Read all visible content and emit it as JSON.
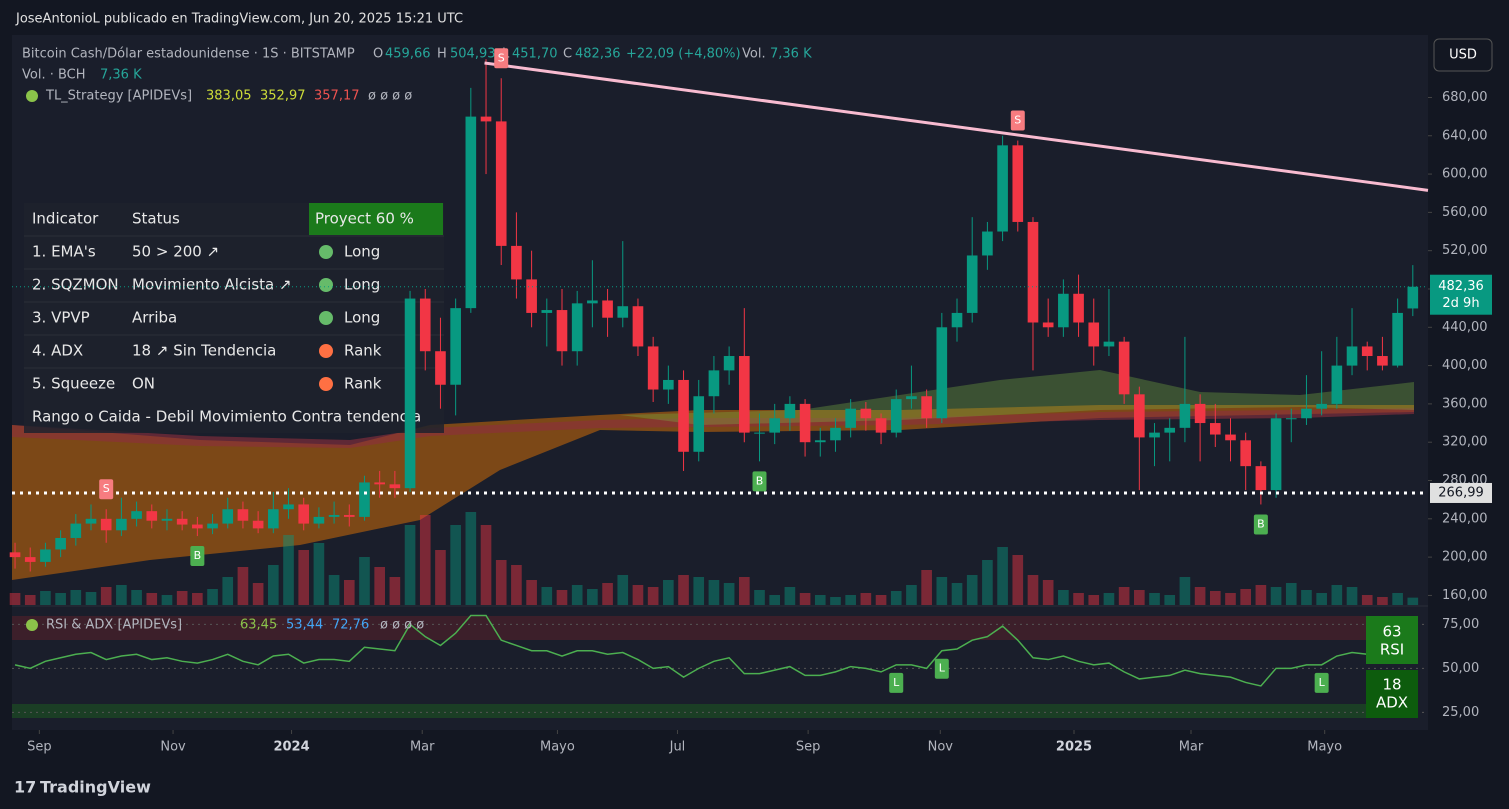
{
  "header": {
    "publisher": "JoseAntonioL publicado en TradingView.com, Jun 20, 2025 15:21 UTC",
    "symbol": "Bitcoin Cash/Dólar estadounidense · 1S · BITSTAMP",
    "o_key": "O",
    "o": "459,66",
    "h_key": "H",
    "h": "504,93",
    "l_key": "L",
    "l": "451,70",
    "c_key": "C",
    "c": "482,36",
    "change": "+22,09 (+4,80%)",
    "vol_key": "Vol.",
    "vol": "7,36 K",
    "vol_line_key": "Vol. · BCH",
    "vol_line": "7,36 K",
    "strategy": "TL_Strategy [APIDEVs]",
    "strategy_values": [
      "383,05",
      "352,97",
      "357,17",
      "ø ø ø ø"
    ],
    "currency": "USD"
  },
  "table": {
    "headers": [
      "Indicator",
      "Status",
      "Proyect 60 %"
    ],
    "rows": [
      [
        "1. EMA's",
        "50 > 200 ↗",
        "Long"
      ],
      [
        "2. SQZMON",
        "Movimiento Alcista ↗",
        "Long"
      ],
      [
        "3. VPVP",
        "Arriba",
        "Long"
      ],
      [
        "4. ADX",
        "18 ↗ Sin Tendencia",
        "Rank"
      ],
      [
        "5. Squeeze",
        "ON",
        "Rank"
      ]
    ],
    "footer": "Rango o Caida - Debil Movimiento Contra tendencia"
  },
  "chart_data": {
    "type": "candlestick",
    "ylim": [
      150,
      740
    ],
    "yticks": [
      {
        "value": 160,
        "label": "160,00"
      },
      {
        "value": 200,
        "label": "200,00"
      },
      {
        "value": 240,
        "label": "240,00"
      },
      {
        "value": 280,
        "label": "280,00"
      },
      {
        "value": 320,
        "label": "320,00"
      },
      {
        "value": 360,
        "label": "360,00"
      },
      {
        "value": 400,
        "label": "400,00"
      },
      {
        "value": 440,
        "label": "440,00"
      },
      {
        "value": 480,
        "label": "480,00"
      },
      {
        "value": 520,
        "label": "520,00"
      },
      {
        "value": 560,
        "label": "560,00"
      },
      {
        "value": 600,
        "label": "600,00"
      },
      {
        "value": 640,
        "label": "640,00"
      },
      {
        "value": 680,
        "label": "680,00"
      }
    ],
    "xlim": [
      -0.2,
      93
    ],
    "xticks": [
      {
        "value": 1.6,
        "label": "Sep"
      },
      {
        "value": 10.4,
        "label": "Nov"
      },
      {
        "value": 18.2,
        "label": "2024"
      },
      {
        "value": 26.8,
        "label": "Mar"
      },
      {
        "value": 35.7,
        "label": "Mayo"
      },
      {
        "value": 43.6,
        "label": "Jul"
      },
      {
        "value": 52.2,
        "label": "Sep"
      },
      {
        "value": 60.9,
        "label": "Nov"
      },
      {
        "value": 69.7,
        "label": "2025"
      },
      {
        "value": 77.4,
        "label": "Mar"
      },
      {
        "value": 86.2,
        "label": "Mayo"
      }
    ],
    "up_color": "#089981",
    "down_color": "#f23645",
    "ohlc": [
      [
        205,
        215,
        188,
        200
      ],
      [
        200,
        210,
        185,
        195
      ],
      [
        195,
        215,
        190,
        208
      ],
      [
        208,
        228,
        200,
        220
      ],
      [
        220,
        245,
        212,
        235
      ],
      [
        235,
        255,
        228,
        240
      ],
      [
        240,
        250,
        215,
        228
      ],
      [
        228,
        262,
        222,
        240
      ],
      [
        240,
        258,
        232,
        248
      ],
      [
        248,
        255,
        230,
        238
      ],
      [
        238,
        250,
        228,
        240
      ],
      [
        240,
        248,
        228,
        234
      ],
      [
        234,
        242,
        222,
        230
      ],
      [
        230,
        245,
        224,
        235
      ],
      [
        235,
        262,
        230,
        250
      ],
      [
        250,
        258,
        230,
        238
      ],
      [
        238,
        248,
        225,
        230
      ],
      [
        230,
        268,
        225,
        250
      ],
      [
        250,
        272,
        240,
        255
      ],
      [
        255,
        262,
        228,
        235
      ],
      [
        235,
        252,
        230,
        242
      ],
      [
        242,
        258,
        235,
        244
      ],
      [
        244,
        255,
        232,
        242
      ],
      [
        242,
        285,
        238,
        278
      ],
      [
        278,
        290,
        262,
        276
      ],
      [
        276,
        290,
        262,
        272
      ],
      [
        272,
        478,
        268,
        470
      ],
      [
        470,
        480,
        395,
        415
      ],
      [
        415,
        450,
        355,
        380
      ],
      [
        380,
        470,
        348,
        460
      ],
      [
        460,
        690,
        455,
        660
      ],
      [
        660,
        720,
        600,
        655
      ],
      [
        655,
        700,
        505,
        525
      ],
      [
        525,
        560,
        470,
        490
      ],
      [
        490,
        520,
        440,
        455
      ],
      [
        455,
        470,
        420,
        458
      ],
      [
        458,
        480,
        400,
        415
      ],
      [
        415,
        478,
        400,
        465
      ],
      [
        465,
        510,
        440,
        468
      ],
      [
        468,
        480,
        430,
        450
      ],
      [
        450,
        530,
        440,
        462
      ],
      [
        462,
        470,
        410,
        420
      ],
      [
        420,
        430,
        362,
        375
      ],
      [
        375,
        400,
        360,
        385
      ],
      [
        385,
        395,
        290,
        310
      ],
      [
        310,
        385,
        300,
        368
      ],
      [
        368,
        410,
        350,
        395
      ],
      [
        395,
        420,
        380,
        410
      ],
      [
        410,
        460,
        320,
        330
      ],
      [
        330,
        350,
        300,
        330
      ],
      [
        330,
        360,
        318,
        345
      ],
      [
        345,
        368,
        332,
        360
      ],
      [
        360,
        365,
        305,
        320
      ],
      [
        320,
        335,
        305,
        322
      ],
      [
        322,
        345,
        310,
        335
      ],
      [
        335,
        365,
        325,
        355
      ],
      [
        355,
        362,
        332,
        345
      ],
      [
        345,
        350,
        318,
        330
      ],
      [
        330,
        375,
        325,
        365
      ],
      [
        365,
        400,
        355,
        368
      ],
      [
        368,
        375,
        335,
        345
      ],
      [
        345,
        455,
        340,
        440
      ],
      [
        440,
        470,
        425,
        455
      ],
      [
        455,
        555,
        445,
        515
      ],
      [
        515,
        550,
        500,
        540
      ],
      [
        540,
        640,
        530,
        630
      ],
      [
        630,
        635,
        540,
        550
      ],
      [
        550,
        555,
        395,
        445
      ],
      [
        445,
        470,
        430,
        440
      ],
      [
        440,
        490,
        430,
        475
      ],
      [
        475,
        495,
        430,
        445
      ],
      [
        445,
        470,
        400,
        420
      ],
      [
        420,
        480,
        410,
        425
      ],
      [
        425,
        430,
        360,
        370
      ],
      [
        370,
        378,
        270,
        325
      ],
      [
        325,
        340,
        295,
        330
      ],
      [
        330,
        345,
        300,
        335
      ],
      [
        335,
        430,
        320,
        360
      ],
      [
        360,
        370,
        300,
        340
      ],
      [
        340,
        360,
        315,
        328
      ],
      [
        328,
        345,
        300,
        322
      ],
      [
        322,
        330,
        270,
        295
      ],
      [
        295,
        300,
        255,
        270
      ],
      [
        270,
        350,
        262,
        345
      ],
      [
        345,
        355,
        320,
        345
      ],
      [
        345,
        390,
        338,
        355
      ],
      [
        355,
        415,
        348,
        360
      ],
      [
        360,
        430,
        355,
        400
      ],
      [
        400,
        460,
        390,
        420
      ],
      [
        420,
        425,
        395,
        410
      ],
      [
        410,
        430,
        395,
        400
      ],
      [
        400,
        470,
        398,
        455
      ],
      [
        459.66,
        504.93,
        451.7,
        482.36
      ]
    ],
    "volumes": [
      12,
      10,
      14,
      12,
      15,
      13,
      18,
      20,
      15,
      12,
      10,
      14,
      12,
      16,
      28,
      38,
      22,
      40,
      70,
      55,
      62,
      30,
      25,
      48,
      38,
      28,
      80,
      90,
      55,
      80,
      93,
      80,
      45,
      40,
      25,
      18,
      15,
      20,
      16,
      22,
      30,
      20,
      18,
      25,
      30,
      28,
      25,
      22,
      28,
      15,
      10,
      18,
      12,
      10,
      8,
      10,
      12,
      10,
      14,
      20,
      35,
      28,
      22,
      30,
      45,
      58,
      50,
      30,
      25,
      15,
      12,
      10,
      12,
      18,
      15,
      12,
      10,
      28,
      18,
      14,
      12,
      16,
      20,
      18,
      22,
      15,
      12,
      20,
      18,
      10,
      8,
      12,
      7.36
    ],
    "volume_ylim": [
      0,
      110
    ],
    "trendline": {
      "color": "#f8bbd0",
      "points": [
        [
          30.9,
          716
        ],
        [
          93,
          583
        ]
      ]
    },
    "support": {
      "value": 266.99,
      "label": "266,99"
    },
    "last_price": {
      "value": 482.36,
      "label": "482,36",
      "countdown": "2d 9h"
    },
    "markers": [
      {
        "index": 6,
        "label": "S"
      },
      {
        "index": 32,
        "label": "S"
      },
      {
        "index": 66,
        "label": "S"
      },
      {
        "index": 12,
        "label": "B"
      },
      {
        "index": 49,
        "label": "B"
      },
      {
        "index": 82,
        "label": "B"
      }
    ],
    "rsi": {
      "title": "RSI & ADX [APIDEVs]",
      "legend_values": [
        "63,45",
        "53,44",
        "72,76",
        "ø ø ø ø"
      ],
      "color": "#4caf50",
      "ylim": [
        15,
        82
      ],
      "yticks": [
        {
          "value": 25,
          "label": "25,00"
        },
        {
          "value": 50,
          "label": "50,00"
        },
        {
          "value": 75,
          "label": "75,00"
        }
      ],
      "values": [
        52,
        50,
        54,
        56,
        58,
        59,
        55,
        57,
        58,
        55,
        56,
        54,
        53,
        55,
        58,
        54,
        52,
        57,
        58,
        53,
        55,
        55,
        54,
        62,
        61,
        60,
        75,
        68,
        63,
        70,
        80,
        80,
        66,
        63,
        60,
        60,
        57,
        60,
        60,
        58,
        59,
        55,
        50,
        51,
        45,
        50,
        54,
        56,
        47,
        47,
        49,
        51,
        46,
        46,
        48,
        51,
        50,
        48,
        52,
        52,
        50,
        60,
        61,
        66,
        68,
        74,
        66,
        56,
        55,
        57,
        54,
        52,
        53,
        48,
        44,
        45,
        46,
        49,
        47,
        46,
        45,
        42,
        40,
        50,
        50,
        52,
        52,
        57,
        59,
        58,
        56,
        61,
        63.45
      ],
      "markers": [
        {
          "index": 58,
          "label": "L"
        },
        {
          "index": 61,
          "label": "L"
        },
        {
          "index": 86,
          "label": "L"
        }
      ],
      "rsi_badge": "63",
      "rsi_badge_label": "RSI",
      "adx_badge": "18",
      "adx_badge_label": "ADX"
    }
  },
  "footer": {
    "brand": "TradingView"
  }
}
